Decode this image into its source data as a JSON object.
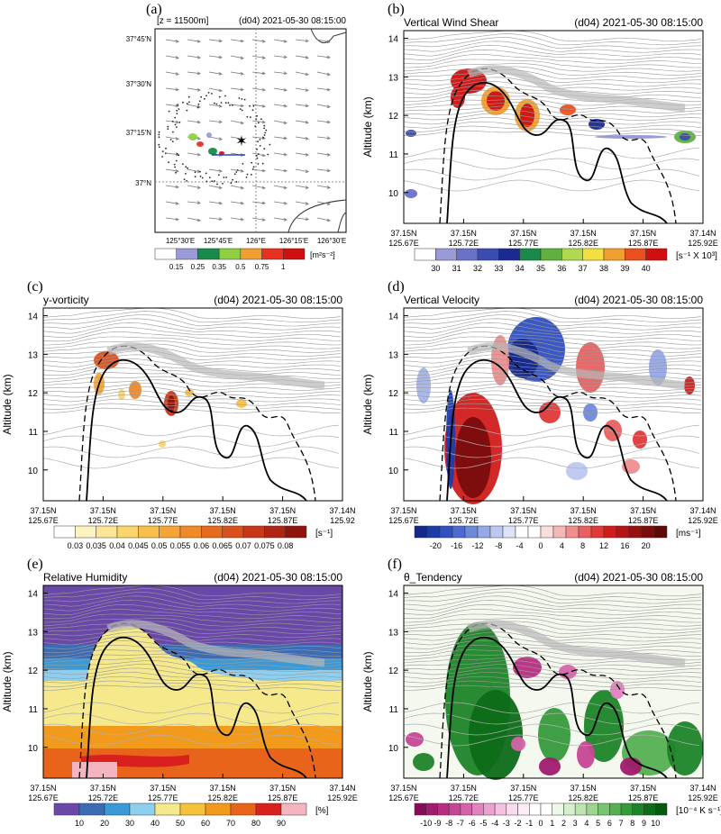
{
  "figure": {
    "datetime": "(d04) 2021-05-30 08:15:00",
    "x_ticks": [
      {
        "lat": "37.15N",
        "lon": "125.67E"
      },
      {
        "lat": "37.15N",
        "lon": "125.72E"
      },
      {
        "lat": "37.15N",
        "lon": "125.77E"
      },
      {
        "lat": "37.15N",
        "lon": "125.82E"
      },
      {
        "lat": "37.15N",
        "lon": "125.87E"
      },
      {
        "lat": "37.14N",
        "lon": "125.92E"
      }
    ],
    "x_ticks_f": [
      {
        "lat": "37.15N",
        "lon": "125.67E"
      },
      {
        "lat": "37.15N",
        "lon": "125.72E"
      },
      {
        "lat": "37.15N",
        "lon": "125.77E"
      },
      {
        "lat": "37.15N",
        "lon": "125.82E"
      },
      {
        "lat": "37.15N",
        "lon": "125.87E"
      },
      {
        "lat": "37.14N",
        "lon": "125.92E"
      }
    ],
    "x_ticks_c": [
      {
        "lat": "37.15N",
        "lon": "125.67E"
      },
      {
        "lat": "37.15N",
        "lon": "125.72E"
      },
      {
        "lat": "37.15N",
        "lon": "125.77E"
      },
      {
        "lat": "37.15N",
        "lon": "125.82E"
      },
      {
        "lat": "37.15N",
        "lon": "125.87E"
      },
      {
        "lat": "37.14N",
        "lon": "125.92"
      }
    ]
  },
  "chart_data": [
    {
      "id": "a",
      "panel_label": "(a)",
      "type": "heatmap",
      "title_left": "[z = 11500m]",
      "title_right": "(d04) 2021-05-30 08:15:00",
      "y_tick_labels": [
        "37°45'N",
        "37°30'N",
        "37°15'N",
        "37°N"
      ],
      "x_tick_labels": [
        "125°30'E",
        "125°45'E",
        "126°E",
        "126°15'E",
        "126°30'E"
      ],
      "colorbar": {
        "levels": [
          "0.15",
          "0.25",
          "0.35",
          "0.5",
          "0.75",
          "1"
        ],
        "unit": "[m²s⁻²]",
        "colors": [
          "#ffffff",
          "#9a9ad6",
          "#1a8a4a",
          "#90d040",
          "#f0a030",
          "#e83020",
          "#d01010"
        ]
      }
    },
    {
      "id": "b",
      "panel_label": "(b)",
      "type": "heatmap",
      "title_left": "Vertical Wind Shear",
      "title_right": "(d04) 2021-05-30 08:15:00",
      "ylabel": "Altitude (km)",
      "y_ticks": [
        10,
        11,
        12,
        13,
        14
      ],
      "ylim": [
        9.2,
        14.2
      ],
      "colorbar": {
        "levels": [
          "30",
          "31",
          "32",
          "33",
          "34",
          "35",
          "36",
          "37",
          "38",
          "39",
          "40"
        ],
        "unit": "[s⁻¹ X 10³]",
        "colors": [
          "#ffffff",
          "#9a9ad6",
          "#6a72c8",
          "#3a4cb0",
          "#1a2a90",
          "#1a8a4a",
          "#60b040",
          "#b0d850",
          "#f0e040",
          "#f0a030",
          "#e85020",
          "#d01010"
        ]
      }
    },
    {
      "id": "c",
      "panel_label": "(c)",
      "type": "heatmap",
      "title_left": "y-vorticity",
      "title_right": "(d04) 2021-05-30 08:15:00",
      "ylabel": "Altitude (km)",
      "y_ticks": [
        10,
        11,
        12,
        13,
        14
      ],
      "ylim": [
        9.2,
        14.2
      ],
      "colorbar": {
        "levels": [
          "0.03",
          "0.035",
          "0.04",
          "0.045",
          "0.05",
          "0.055",
          "0.06",
          "0.065",
          "0.07",
          "0.075",
          "0.08"
        ],
        "unit": "[s⁻¹]",
        "colors": [
          "#ffffff",
          "#fdf3c0",
          "#fce596",
          "#fbd56e",
          "#f8c04a",
          "#f5a535",
          "#f08a28",
          "#e66b20",
          "#d9501c",
          "#c83818",
          "#b02414",
          "#8e1410"
        ]
      }
    },
    {
      "id": "d",
      "panel_label": "(d)",
      "type": "heatmap",
      "title_left": "Vertical Velocity",
      "title_right": "(d04) 2021-05-30 08:15:00",
      "ylabel": "Altitude (km)",
      "y_ticks": [
        10,
        11,
        12,
        13,
        14
      ],
      "ylim": [
        9.2,
        14.2
      ],
      "colorbar": {
        "levels": [
          "-20",
          "-16",
          "-12",
          "-8",
          "-4",
          "0",
          "4",
          "8",
          "12",
          "16",
          "20"
        ],
        "unit": "[ms⁻¹]",
        "colors": [
          "#14288c",
          "#1e3ca8",
          "#3250c0",
          "#4c6ad0",
          "#6e88dc",
          "#96a8e6",
          "#bcc8f0",
          "#dde3f7",
          "#ffffff",
          "#ffffff",
          "#f9dede",
          "#f4b8b8",
          "#ee8e8e",
          "#e86060",
          "#e03838",
          "#d01c1c",
          "#b41414",
          "#961010",
          "#7a0c0c",
          "#5e0808"
        ]
      }
    },
    {
      "id": "e",
      "panel_label": "(e)",
      "type": "heatmap",
      "title_left": "Relative Humidity",
      "title_right": "(d04) 2021-05-30 08:15:00",
      "ylabel": "Altitude (km)",
      "y_ticks": [
        10,
        11,
        12,
        13,
        14
      ],
      "ylim": [
        9.2,
        14.2
      ],
      "colorbar": {
        "levels": [
          "10",
          "20",
          "30",
          "40",
          "50",
          "60",
          "70",
          "80",
          "90"
        ],
        "unit": "[%]",
        "colors": [
          "#6a48a8",
          "#3c6cb4",
          "#3a9ad8",
          "#8ecff0",
          "#f6e98c",
          "#f5c23c",
          "#f29a1c",
          "#e8641a",
          "#d8201c",
          "#f4b4c0"
        ]
      }
    },
    {
      "id": "f",
      "panel_label": "(f)",
      "type": "heatmap",
      "title_left": "θ_Tendency",
      "title_right": "(d04) 2021-05-30 08:15:00",
      "ylabel": "Altitude (km)",
      "y_ticks": [
        10,
        11,
        12,
        13,
        14
      ],
      "ylim": [
        9.2,
        14.2
      ],
      "colorbar": {
        "levels": [
          "-10",
          "-9",
          "-8",
          "-7",
          "-6",
          "-5",
          "-4",
          "-3",
          "-2",
          "-1",
          "0",
          "1",
          "2",
          "3",
          "4",
          "5",
          "6",
          "7",
          "8",
          "9",
          "10"
        ],
        "unit": "[10⁻⁴ K s⁻¹]",
        "colors": [
          "#8a0a5a",
          "#a01a6e",
          "#b82c82",
          "#c84496",
          "#d662aa",
          "#e282be",
          "#eca2d0",
          "#f4c2e0",
          "#f9dced",
          "#fcedf6",
          "#ffffff",
          "#ffffff",
          "#eef7e8",
          "#d8efcc",
          "#bce4ae",
          "#9cd690",
          "#78c470",
          "#54b052",
          "#349a3a",
          "#1c8428",
          "#0c6c18",
          "#045810"
        ]
      }
    }
  ]
}
